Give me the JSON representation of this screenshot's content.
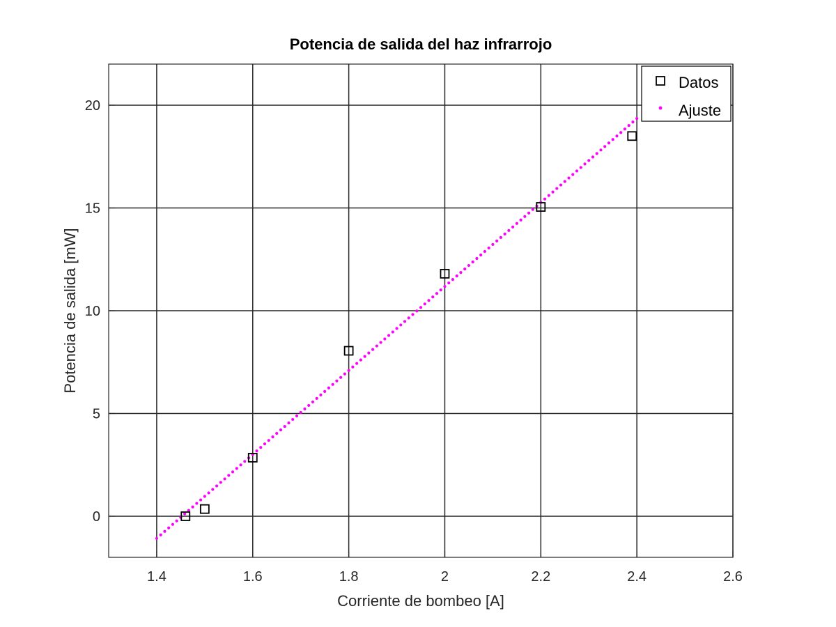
{
  "chart_data": {
    "type": "scatter",
    "title": "Potencia de salida del haz infrarrojo",
    "xlabel": "Corriente de bombeo [A]",
    "ylabel": "Potencia de salida [mW]",
    "xlim": [
      1.3,
      2.6
    ],
    "ylim": [
      -2,
      22
    ],
    "xticks": [
      1.4,
      1.6,
      1.8,
      2.0,
      2.2,
      2.4,
      2.6
    ],
    "xtick_labels": [
      "1.4",
      "1.6",
      "1.8",
      "2",
      "2.2",
      "2.4",
      "2.6"
    ],
    "yticks": [
      0,
      5,
      10,
      15,
      20
    ],
    "ytick_labels": [
      "0",
      "5",
      "10",
      "15",
      "20"
    ],
    "grid": true,
    "legend_position": "top-right",
    "series": [
      {
        "name": "Datos",
        "marker": "square",
        "color": "#000000",
        "x": [
          1.46,
          1.5,
          1.6,
          1.8,
          2.0,
          2.2,
          2.39
        ],
        "y": [
          0.0,
          0.35,
          2.85,
          8.05,
          11.8,
          15.05,
          18.5
        ]
      },
      {
        "name": "Ajuste",
        "marker": "dot",
        "color": "#ff00ff",
        "fit": {
          "slope": 20.43,
          "intercept": -29.68
        },
        "x_range": [
          1.4,
          2.4
        ]
      }
    ]
  }
}
